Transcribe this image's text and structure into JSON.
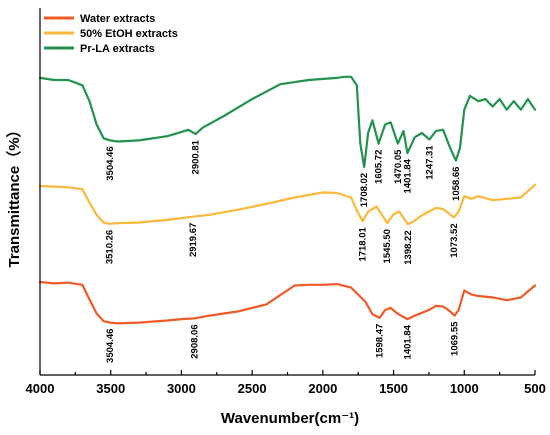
{
  "chart_data": {
    "type": "line",
    "xlabel": "Wavenumber(cm⁻¹)",
    "ylabel": "Transmittance（%）",
    "xlim": [
      4000,
      500
    ],
    "x_ticks": [
      "4000",
      "3500",
      "3000",
      "2500",
      "2000",
      "1500",
      "1000",
      "500"
    ],
    "x_tick_values": [
      4000,
      3500,
      3000,
      2500,
      2000,
      1500,
      1000,
      500
    ],
    "y_ticks_shown": false,
    "legend_position": "top-left",
    "series": [
      {
        "name": "Water extracts",
        "color": "#f05a28",
        "offset": 0,
        "x": [
          4000,
          3900,
          3800,
          3700,
          3650,
          3600,
          3550,
          3504,
          3450,
          3300,
          3100,
          3000,
          2908,
          2800,
          2600,
          2400,
          2200,
          2100,
          2000,
          1900,
          1800,
          1700,
          1650,
          1598,
          1560,
          1520,
          1480,
          1430,
          1402,
          1350,
          1300,
          1250,
          1200,
          1150,
          1100,
          1069,
          1040,
          1000,
          950,
          900,
          800,
          700,
          600,
          500
        ],
        "y": [
          1.0,
          0.98,
          0.99,
          0.96,
          0.75,
          0.55,
          0.44,
          0.42,
          0.41,
          0.42,
          0.45,
          0.47,
          0.48,
          0.52,
          0.58,
          0.68,
          0.95,
          0.96,
          0.96,
          0.97,
          0.92,
          0.72,
          0.54,
          0.49,
          0.6,
          0.63,
          0.56,
          0.5,
          0.47,
          0.52,
          0.56,
          0.6,
          0.66,
          0.65,
          0.58,
          0.52,
          0.6,
          0.88,
          0.82,
          0.8,
          0.78,
          0.74,
          0.78,
          0.95
        ]
      },
      {
        "name": "50% EtOH extracts",
        "color": "#fbb83a",
        "offset": 1,
        "x": [
          4000,
          3900,
          3800,
          3700,
          3650,
          3600,
          3550,
          3510,
          3450,
          3300,
          3100,
          2919,
          2800,
          2600,
          2400,
          2200,
          2000,
          1900,
          1800,
          1760,
          1718,
          1680,
          1620,
          1545,
          1500,
          1460,
          1398,
          1350,
          1300,
          1250,
          1200,
          1150,
          1100,
          1073,
          1040,
          1000,
          950,
          900,
          800,
          700,
          600,
          500
        ],
        "y": [
          1.0,
          0.99,
          0.98,
          0.95,
          0.74,
          0.55,
          0.43,
          0.41,
          0.42,
          0.43,
          0.47,
          0.52,
          0.55,
          0.63,
          0.72,
          0.82,
          0.9,
          0.89,
          0.82,
          0.62,
          0.45,
          0.6,
          0.68,
          0.42,
          0.56,
          0.6,
          0.4,
          0.46,
          0.54,
          0.6,
          0.66,
          0.64,
          0.56,
          0.51,
          0.6,
          0.84,
          0.8,
          0.84,
          0.78,
          0.8,
          0.82,
          1.02
        ]
      },
      {
        "name": "Pr-LA extracts",
        "color": "#23914f",
        "offset": 2,
        "x": [
          4000,
          3900,
          3800,
          3700,
          3650,
          3600,
          3550,
          3504,
          3450,
          3300,
          3100,
          2950,
          2900,
          2850,
          2700,
          2500,
          2300,
          2100,
          1900,
          1850,
          1800,
          1760,
          1735,
          1708,
          1680,
          1650,
          1606,
          1560,
          1520,
          1470,
          1430,
          1402,
          1350,
          1300,
          1247,
          1200,
          1150,
          1100,
          1059,
          1030,
          1000,
          960,
          900,
          850,
          800,
          750,
          700,
          650,
          600,
          550,
          500
        ],
        "y": [
          1.02,
          1.0,
          1.0,
          0.95,
          0.8,
          0.58,
          0.45,
          0.43,
          0.42,
          0.43,
          0.47,
          0.53,
          0.49,
          0.55,
          0.66,
          0.82,
          0.96,
          1.0,
          1.02,
          1.03,
          1.03,
          0.95,
          0.4,
          0.18,
          0.5,
          0.62,
          0.4,
          0.58,
          0.6,
          0.4,
          0.52,
          0.31,
          0.46,
          0.5,
          0.44,
          0.52,
          0.53,
          0.36,
          0.24,
          0.36,
          0.72,
          0.85,
          0.8,
          0.82,
          0.75,
          0.82,
          0.72,
          0.8,
          0.72,
          0.82,
          0.72
        ]
      }
    ],
    "annotations": [
      {
        "series": 0,
        "x": 3504,
        "text": "3504.46"
      },
      {
        "series": 0,
        "x": 2908,
        "text": "2908.06"
      },
      {
        "series": 0,
        "x": 1598,
        "text": "1598.47"
      },
      {
        "series": 0,
        "x": 1402,
        "text": "1401.84"
      },
      {
        "series": 0,
        "x": 1069,
        "text": "1069.55"
      },
      {
        "series": 1,
        "x": 3510,
        "text": "3510.26"
      },
      {
        "series": 1,
        "x": 2919,
        "text": "2919.67"
      },
      {
        "series": 1,
        "x": 1718,
        "text": "1718.01"
      },
      {
        "series": 1,
        "x": 1545,
        "text": "1545.50"
      },
      {
        "series": 1,
        "x": 1398,
        "text": "1398.22"
      },
      {
        "series": 1,
        "x": 1073,
        "text": "1073.52"
      },
      {
        "series": 2,
        "x": 3504,
        "text": "3504.46"
      },
      {
        "series": 2,
        "x": 2900,
        "text": "2900.81"
      },
      {
        "series": 2,
        "x": 1708,
        "text": "1708.02"
      },
      {
        "series": 2,
        "x": 1606,
        "text": "1605.72"
      },
      {
        "series": 2,
        "x": 1470,
        "text": "1470.05"
      },
      {
        "series": 2,
        "x": 1402,
        "text": "1401.84"
      },
      {
        "series": 2,
        "x": 1247,
        "text": "1247.31"
      },
      {
        "series": 2,
        "x": 1059,
        "text": "1058.66"
      }
    ]
  }
}
